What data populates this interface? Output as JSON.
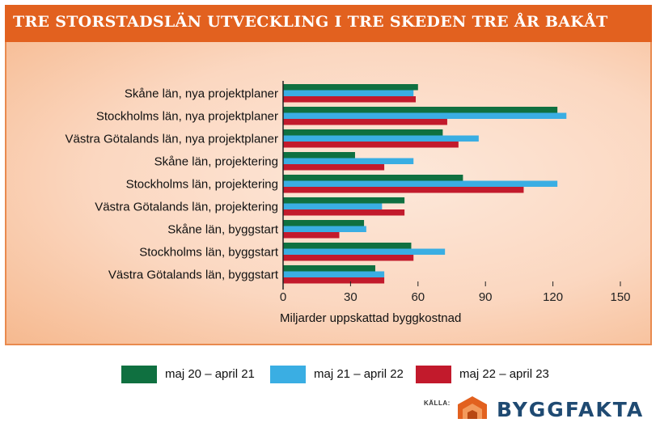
{
  "header": {
    "title": "TRE STORSTADSLÄN UTVECKLING I TRE SKEDEN TRE ÅR BAKÅT"
  },
  "chart_data": {
    "type": "bar",
    "orientation": "horizontal",
    "title": "TRE STORSTADSLÄN UTVECKLING I TRE SKEDEN TRE ÅR BAKÅT",
    "xlabel": "Miljarder uppskattad byggkostnad",
    "ylabel": "",
    "xlim": [
      0,
      150
    ],
    "xticks": [
      0,
      30,
      60,
      90,
      120,
      150
    ],
    "grid": false,
    "legend_position": "bottom",
    "categories": [
      "Skåne län, nya projektplaner",
      "Stockholms län, nya projektplaner",
      "Västra Götalands län, nya projektplaner",
      "Skåne län, projektering",
      "Stockholms län, projektering",
      "Västra Götalands län, projektering",
      "Skåne län, byggstart",
      "Stockholms län, byggstart",
      "Västra Götalands län, byggstart"
    ],
    "series": [
      {
        "name": "maj 20 – april 21",
        "color": "#0f7040",
        "values": [
          60,
          122,
          71,
          32,
          80,
          54,
          36,
          57,
          41
        ]
      },
      {
        "name": "maj 21 – april 22",
        "color": "#3aaee3",
        "values": [
          58,
          126,
          87,
          58,
          122,
          44,
          37,
          72,
          45
        ]
      },
      {
        "name": "maj 22 – april 23",
        "color": "#c21a2c",
        "values": [
          59,
          73,
          78,
          45,
          107,
          54,
          25,
          58,
          45
        ]
      }
    ]
  },
  "source": {
    "label": "KÄLLA:",
    "brand": "BYGGFAKTA",
    "logo_color": "#e2611f"
  }
}
